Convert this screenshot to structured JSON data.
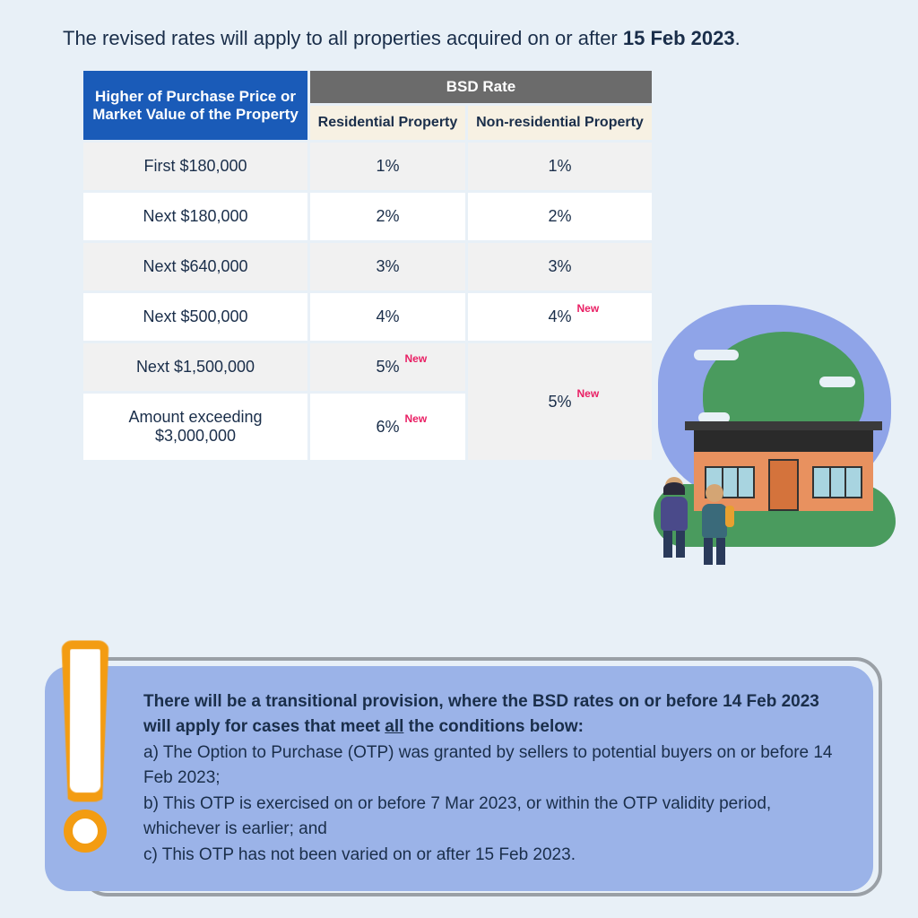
{
  "intro": {
    "prefix": "The revised rates will apply to all properties acquired on or after ",
    "date": "15 Feb 2023",
    "suffix": "."
  },
  "table": {
    "header_left": "Higher of Purchase Price or Market Value of the Property",
    "header_top": "BSD Rate",
    "sub_residential": "Residential Property",
    "sub_nonresidential": "Non-residential Property",
    "new_label": "New",
    "rows": [
      {
        "tier": "First $180,000",
        "res": "1%",
        "res_new": false,
        "nonres": "1%",
        "nonres_new": false
      },
      {
        "tier": "Next $180,000",
        "res": "2%",
        "res_new": false,
        "nonres": "2%",
        "nonres_new": false
      },
      {
        "tier": "Next $640,000",
        "res": "3%",
        "res_new": false,
        "nonres": "3%",
        "nonres_new": false
      },
      {
        "tier": "Next $500,000",
        "res": "4%",
        "res_new": false,
        "nonres": "4%",
        "nonres_new": true
      },
      {
        "tier": "Next $1,500,000",
        "res": "5%",
        "res_new": true
      },
      {
        "tier": "Amount exceeding $3,000,000",
        "res": "6%",
        "res_new": true
      }
    ],
    "merged_nonres": {
      "value": "5%",
      "is_new": true
    }
  },
  "callout": {
    "lead_a": "There will be a transitional provision, where the BSD rates on or before 14 Feb 2023 will apply for cases that meet ",
    "lead_u": "all",
    "lead_b": " the conditions below:",
    "item_a": "a) The Option to Purchase (OTP) was granted by sellers to potential buyers on or before 14 Feb 2023;",
    "item_b": "b) This OTP is exercised on or before 7 Mar 2023, or within the OTP validity period, whichever is earlier; and",
    "item_c": "c) This OTP has not been varied on or after 15 Feb 2023."
  },
  "colors": {
    "page_bg": "#e8f0f7",
    "header_blue": "#1a5bb8",
    "header_gray": "#6b6b6b",
    "subheader_cream": "#f7f1e3",
    "row_alt": "#f1f1f1",
    "text": "#1a2e4a",
    "new_tag": "#e91e63",
    "callout_bg": "#9bb3e8",
    "callout_border": "#9aa0a6",
    "excl_orange": "#f39c12",
    "illus_sky": "#8fa4e8",
    "illus_green": "#4a9b5e",
    "illus_house": "#e8915f",
    "illus_roof": "#2a2a2a"
  }
}
